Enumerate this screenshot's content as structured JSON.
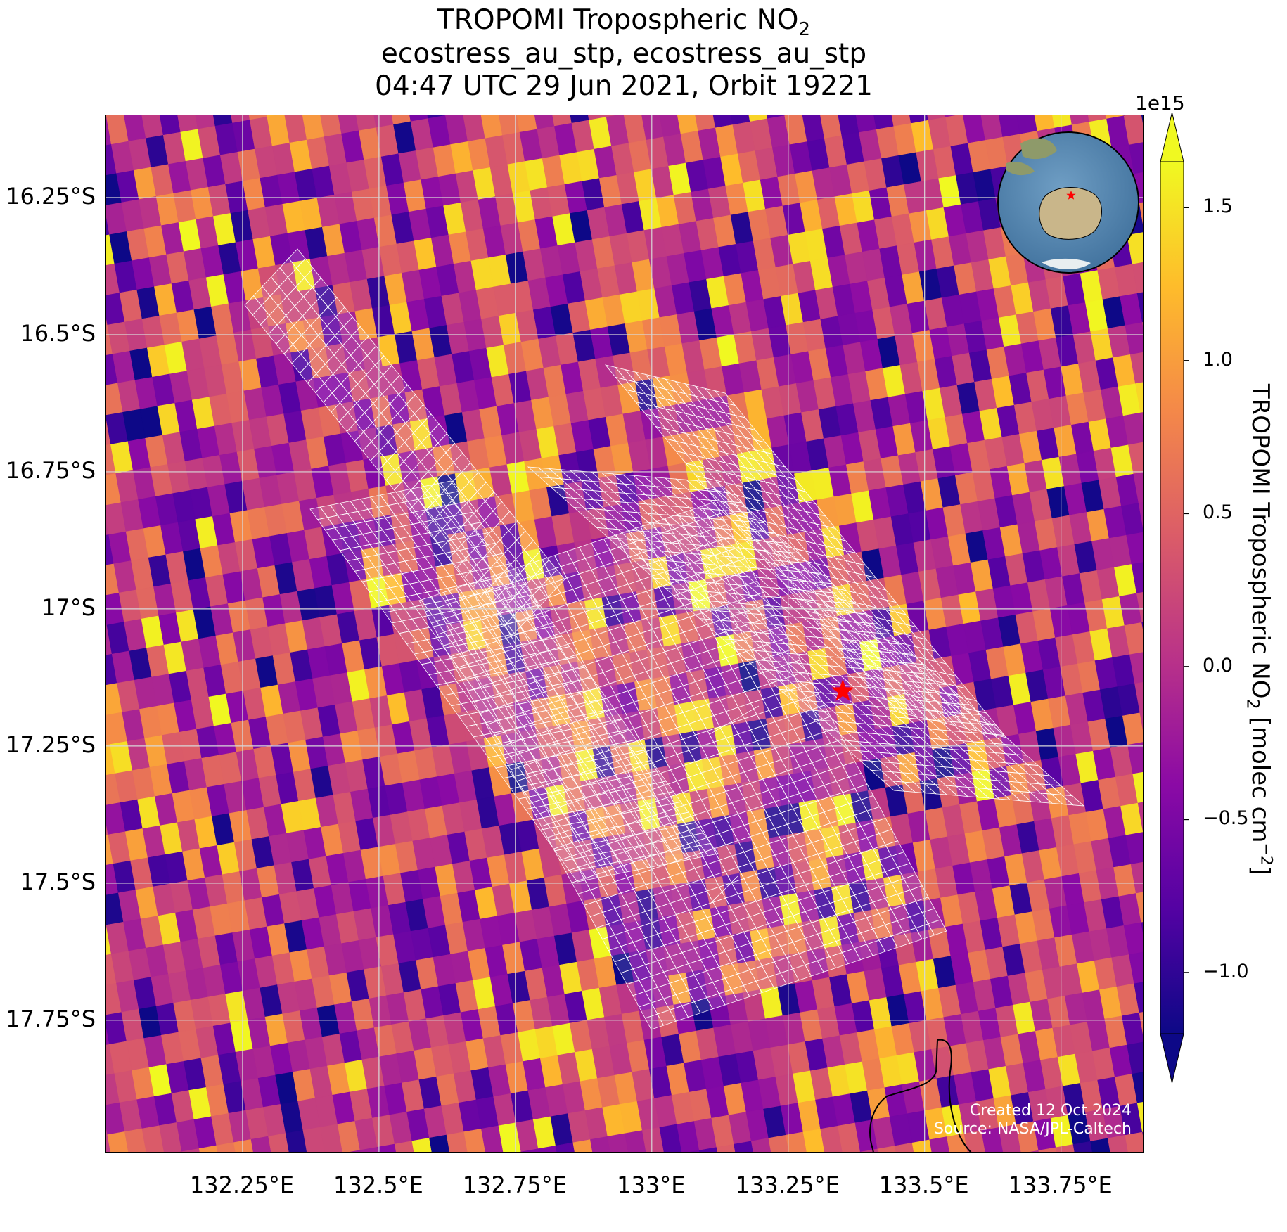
{
  "title": {
    "line1_main": "TROPOMI Tropospheric NO",
    "line1_sub": "2",
    "line2": "ecostress_au_stp, ecostress_au_stp",
    "line3": "04:47 UTC 29 Jun 2021, Orbit 19221"
  },
  "axes": {
    "lon_range": [
      132.0,
      133.9
    ],
    "lat_range": [
      -17.99,
      -16.1
    ],
    "x_ticks": [
      {
        "value": 132.25,
        "label": "132.25°E"
      },
      {
        "value": 132.5,
        "label": "132.5°E"
      },
      {
        "value": 132.75,
        "label": "132.75°E"
      },
      {
        "value": 133.0,
        "label": "133°E"
      },
      {
        "value": 133.25,
        "label": "133.25°E"
      },
      {
        "value": 133.5,
        "label": "133.5°E"
      },
      {
        "value": 133.75,
        "label": "133.75°E"
      }
    ],
    "y_ticks": [
      {
        "value": -16.25,
        "label": "16.25°S"
      },
      {
        "value": -16.5,
        "label": "16.5°S"
      },
      {
        "value": -16.75,
        "label": "16.75°S"
      },
      {
        "value": -17.0,
        "label": "17°S"
      },
      {
        "value": -17.25,
        "label": "17.25°S"
      },
      {
        "value": -17.5,
        "label": "17.5°S"
      },
      {
        "value": -17.75,
        "label": "17.75°S"
      }
    ],
    "gridlines": true
  },
  "site_marker": {
    "lon": 133.35,
    "lat": -17.15,
    "color": "#ff0000",
    "symbol": "star"
  },
  "colorbar": {
    "colormap": "plasma",
    "range": [
      -1200000000000000.0,
      1650000000000000.0
    ],
    "extend": "both",
    "exponent_label": "1e15",
    "ticks": [
      {
        "value": 1.5,
        "label": "1.5"
      },
      {
        "value": 1.0,
        "label": "1.0"
      },
      {
        "value": 0.5,
        "label": "0.5"
      },
      {
        "value": 0.0,
        "label": "0.0"
      },
      {
        "value": -0.5,
        "label": "−0.5"
      },
      {
        "value": -1.0,
        "label": "−1.0"
      }
    ],
    "label_main": "TROPOMI Tropospheric NO",
    "label_sub": "2",
    "label_units": " [molec cm",
    "label_sup": "−2",
    "label_end": "]"
  },
  "inset_globe": {
    "label": "locator-globe",
    "marker_color": "#ff0000"
  },
  "credits": {
    "created": "Created 12 Oct 2024",
    "source": "Source: NASA/JPL-Caltech"
  },
  "colors": {
    "grid": "#d8d8d8",
    "footprint_outline": "#ffffff",
    "coastline": "#000000"
  }
}
